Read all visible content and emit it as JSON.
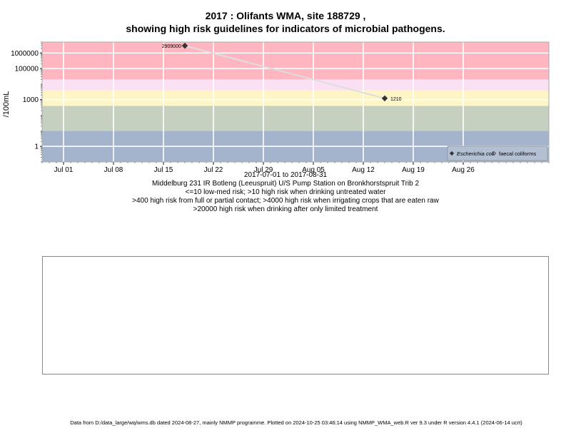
{
  "title_line1": "2017 : Olifants WMA, site 188729 ,",
  "title_line2": "showing high risk guidelines for indicators of microbial pathogens.",
  "subtitle_lines": [
    "2017-07-01 to 2017-08-31",
    "Middelburg 231 IR Botleng (Leeuspruit) U/S Pump Station on Bronkhorstspruit Trib 2",
    "<=10 low-med risk; >10 high risk when drinking untreated water",
    ">400 high risk from full or partial contact; >4000 high risk when irrigating crops that are eaten raw",
    ">20000 high risk when drinking after only limited treatment"
  ],
  "footer": "Data from D:/data_large/wq/wms.db dated 2024-08-27, mainly NMMP programme. Plotted on 2024-10-25 03:46:14 using NMMP_WMA_web.R ver 9.3 under R version 4.4.1 (2024-06-14 ucrt)",
  "chart_data": {
    "type": "scatter",
    "ylabel": "/100mL",
    "yscale": "log",
    "ylim": [
      0.1,
      5000000
    ],
    "xlim": [
      "2017-06-28",
      "2017-09-07"
    ],
    "x_ticks": [
      {
        "date": "2017-07-01",
        "label": "Jul 01"
      },
      {
        "date": "2017-07-08",
        "label": "Jul 08"
      },
      {
        "date": "2017-07-15",
        "label": "Jul 15"
      },
      {
        "date": "2017-07-22",
        "label": "Jul 22"
      },
      {
        "date": "2017-07-29",
        "label": "Jul 29"
      },
      {
        "date": "2017-08-05",
        "label": "Aug 05"
      },
      {
        "date": "2017-08-12",
        "label": "Aug 12"
      },
      {
        "date": "2017-08-19",
        "label": "Aug 19"
      },
      {
        "date": "2017-08-26",
        "label": "Aug 26"
      }
    ],
    "y_ticks": [
      {
        "value": 1,
        "label": "1"
      },
      {
        "value": 1000,
        "label": "1000"
      },
      {
        "value": 100000,
        "label": "100000"
      },
      {
        "value": 1000000,
        "label": "1000000"
      }
    ],
    "bands": [
      {
        "from": 0.1,
        "to": 10,
        "color": "#a4b4cc"
      },
      {
        "from": 10,
        "to": 400,
        "color": "#c6d0c0"
      },
      {
        "from": 400,
        "to": 4000,
        "color": "#fdf5c4"
      },
      {
        "from": 4000,
        "to": 20000,
        "color": "#fbe0f4"
      },
      {
        "from": 20000,
        "to": 5000000,
        "color": "#ffb6c1"
      }
    ],
    "grid": true,
    "legend_position": "bottom-right",
    "series": [
      {
        "name": "Escherichia coli",
        "marker": "filled-diamond",
        "color": "#333333",
        "points": [
          {
            "date": "2017-07-18",
            "value": 2909000,
            "label": "2909000"
          },
          {
            "date": "2017-08-15",
            "value": 1210,
            "label": "1210"
          }
        ]
      },
      {
        "name": "faecal coliforms",
        "marker": "open-diamond",
        "color": "#333333",
        "points": []
      }
    ]
  }
}
